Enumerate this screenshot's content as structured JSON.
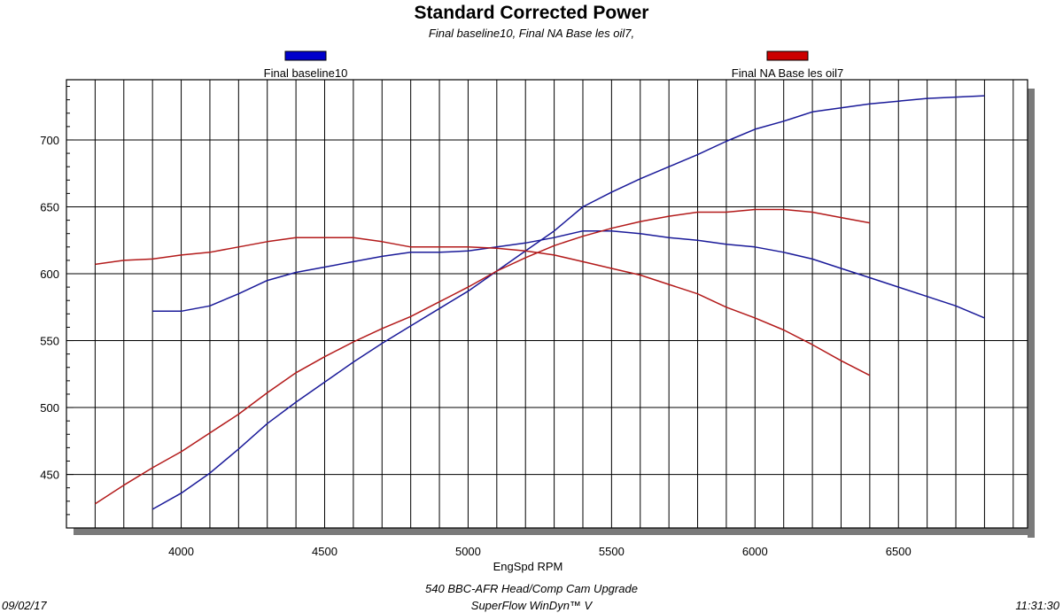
{
  "chart_data": {
    "type": "line",
    "title": "Standard Corrected Power",
    "subtitle": "Final baseline10, Final NA Base les oil7,",
    "xlabel": "EngSpd RPM",
    "ylabel": "",
    "xlim": [
      3600,
      6950
    ],
    "ylim": [
      410,
      745
    ],
    "x_ticks": [
      4000,
      4500,
      5000,
      5500,
      6000,
      6500
    ],
    "y_ticks": [
      450,
      500,
      550,
      600,
      650,
      700
    ],
    "x_gridline_step": 100,
    "y_gridline_step": 50,
    "grid": true,
    "legend": [
      {
        "name": "Final baseline10",
        "color": "#0000cc"
      },
      {
        "name": "Final NA Base les oil7",
        "color": "#cc0000"
      }
    ],
    "series": [
      {
        "name": "Final baseline10",
        "measure": "power",
        "color": "#1a1a99",
        "x": [
          3900,
          4000,
          4100,
          4200,
          4300,
          4400,
          4500,
          4600,
          4700,
          4800,
          4900,
          5000,
          5100,
          5200,
          5300,
          5400,
          5500,
          5600,
          5700,
          5800,
          5900,
          6000,
          6100,
          6200,
          6300,
          6400,
          6500,
          6600,
          6700,
          6800
        ],
        "y": [
          424,
          436,
          451,
          469,
          488,
          504,
          519,
          534,
          548,
          561,
          574,
          587,
          602,
          617,
          632,
          650,
          661,
          671,
          680,
          689,
          699,
          708,
          714,
          721,
          724,
          727,
          729,
          731,
          732,
          733
        ]
      },
      {
        "name": "Final baseline10",
        "measure": "torque",
        "color": "#1a1a99",
        "x": [
          3900,
          4000,
          4100,
          4200,
          4300,
          4400,
          4500,
          4600,
          4700,
          4800,
          4900,
          5000,
          5100,
          5200,
          5300,
          5400,
          5500,
          5600,
          5700,
          5800,
          5900,
          6000,
          6100,
          6200,
          6300,
          6400,
          6500,
          6600,
          6700,
          6800
        ],
        "y": [
          572,
          572,
          576,
          585,
          595,
          601,
          605,
          609,
          613,
          616,
          616,
          617,
          620,
          623,
          627,
          632,
          632,
          630,
          627,
          625,
          622,
          620,
          616,
          611,
          604,
          597,
          590,
          583,
          576,
          567
        ]
      },
      {
        "name": "Final NA Base les oil7",
        "measure": "power",
        "color": "#b31a1a",
        "x": [
          3700,
          3800,
          3900,
          4000,
          4100,
          4200,
          4300,
          4400,
          4500,
          4600,
          4700,
          4800,
          4900,
          5000,
          5100,
          5200,
          5300,
          5400,
          5500,
          5600,
          5700,
          5800,
          5900,
          6000,
          6100,
          6200,
          6300,
          6400
        ],
        "y": [
          428,
          442,
          455,
          467,
          481,
          495,
          511,
          526,
          538,
          549,
          559,
          568,
          579,
          590,
          602,
          612,
          621,
          628,
          634,
          639,
          643,
          646,
          646,
          648,
          648,
          646,
          642,
          638
        ]
      },
      {
        "name": "Final NA Base les oil7",
        "measure": "torque",
        "color": "#b31a1a",
        "x": [
          3700,
          3800,
          3900,
          4000,
          4100,
          4200,
          4300,
          4400,
          4500,
          4600,
          4700,
          4800,
          4900,
          5000,
          5100,
          5200,
          5300,
          5400,
          5500,
          5600,
          5700,
          5800,
          5900,
          6000,
          6100,
          6200,
          6300,
          6400
        ],
        "y": [
          607,
          610,
          611,
          614,
          616,
          620,
          624,
          627,
          627,
          627,
          624,
          620,
          620,
          620,
          619,
          617,
          614,
          609,
          604,
          599,
          592,
          585,
          575,
          567,
          558,
          547,
          535,
          524
        ]
      }
    ]
  },
  "footer": {
    "date": "09/02/17",
    "time": "11:31:30",
    "line1": "540 BBC-AFR Head/Comp Cam Upgrade",
    "line2": "SuperFlow WinDyn™ V"
  }
}
